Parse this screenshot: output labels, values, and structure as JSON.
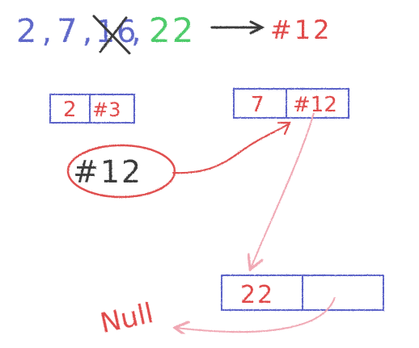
{
  "header": {
    "sequence_prefix": "2,7,",
    "crossed_value": "16",
    "separator": ",",
    "new_value": "22",
    "target_label": "#12"
  },
  "nodes": [
    {
      "value": "2",
      "next": "#3"
    },
    {
      "value": "7",
      "next": "#12"
    },
    {
      "value": "22",
      "next": ""
    }
  ],
  "pointer_label": "#12",
  "null_label": "Null",
  "colors": {
    "node_border": "#5b63c8",
    "value_red": "#e04848",
    "header_blue": "#5e67c9",
    "header_green": "#4ecb6a",
    "ink_dark": "#3a3a3a",
    "arrow_pink": "#f0a8b4",
    "circle_red": "#e05050"
  }
}
